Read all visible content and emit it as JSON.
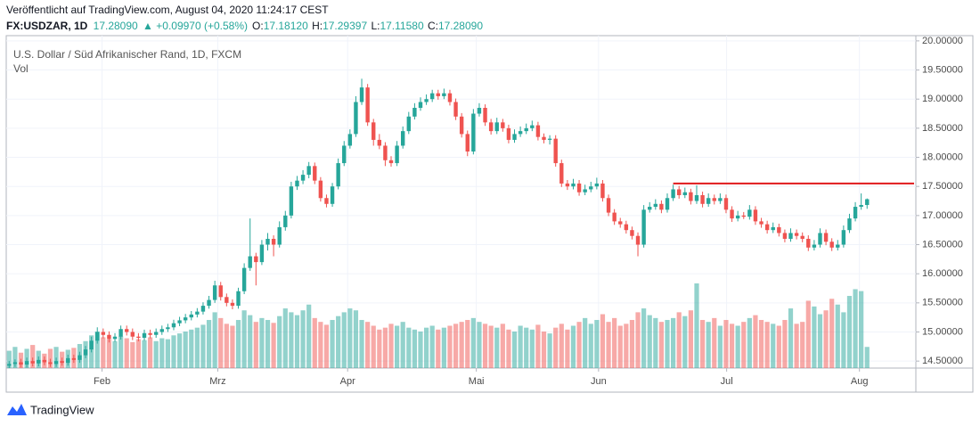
{
  "published": "Veröffentlicht auf TradingView.com, August 04, 2020 11:24:17 CEST",
  "legend": {
    "symbol": "FX:USDZAR, 1D",
    "last": "17.28090",
    "change": "▲ +0.09970 (+0.58%)",
    "ohlc": [
      {
        "label": "O:",
        "value": "17.18120"
      },
      {
        "label": "H:",
        "value": "17.29397"
      },
      {
        "label": "L:",
        "value": "17.11580"
      },
      {
        "label": "C:",
        "value": "17.28090"
      }
    ]
  },
  "brand": "TradingView",
  "chart_data": {
    "type": "candlestick",
    "title": "U.S. Dollar / Süd Afrikanischer Rand, 1D, FXCM",
    "volume_label": "Vol",
    "up_color": "#26a69a",
    "down_color": "#ef5350",
    "ylim": [
      14.38,
      20.09
    ],
    "yticks": [
      {
        "value": 14.5,
        "label": "14.50000"
      },
      {
        "value": 15,
        "label": "15.00000"
      },
      {
        "value": 15.5,
        "label": "15.50000"
      },
      {
        "value": 16,
        "label": "16.00000"
      },
      {
        "value": 16.5,
        "label": "16.50000"
      },
      {
        "value": 17,
        "label": "17.00000"
      },
      {
        "value": 17.5,
        "label": "17.50000"
      },
      {
        "value": 18,
        "label": "18.00000"
      },
      {
        "value": 18.5,
        "label": "18.50000"
      },
      {
        "value": 19,
        "label": "19.00000"
      },
      {
        "value": 19.5,
        "label": "19.50000"
      },
      {
        "value": 20,
        "label": "20.00000"
      }
    ],
    "xlim": [
      -0.5,
      154.3
    ],
    "xticks": [
      {
        "value": 15.8,
        "label": "Feb"
      },
      {
        "value": 35.5,
        "label": "Mrz"
      },
      {
        "value": 57.6,
        "label": "Apr"
      },
      {
        "value": 79.5,
        "label": "Mai"
      },
      {
        "value": 100.3,
        "label": "Jun"
      },
      {
        "value": 122.1,
        "label": "Jul"
      },
      {
        "value": 144.7,
        "label": "Aug"
      }
    ],
    "grid": true,
    "hline": {
      "value": 17.55,
      "from": 113,
      "color": "#e0191b"
    },
    "ohlc": [
      [
        14.42,
        14.5,
        14.38,
        14.45
      ],
      [
        14.45,
        14.53,
        14.4,
        14.48
      ],
      [
        14.48,
        14.54,
        14.39,
        14.44
      ],
      [
        14.44,
        14.56,
        14.39,
        14.5
      ],
      [
        14.5,
        14.56,
        14.41,
        14.46
      ],
      [
        14.46,
        14.58,
        14.41,
        14.52
      ],
      [
        14.52,
        14.58,
        14.43,
        14.48
      ],
      [
        14.48,
        14.54,
        14.4,
        14.45
      ],
      [
        14.45,
        14.56,
        14.4,
        14.5
      ],
      [
        14.5,
        14.56,
        14.42,
        14.47
      ],
      [
        14.47,
        14.61,
        14.42,
        14.55
      ],
      [
        14.55,
        14.61,
        14.47,
        14.52
      ],
      [
        14.52,
        14.66,
        14.47,
        14.6
      ],
      [
        14.6,
        14.76,
        14.55,
        14.7
      ],
      [
        14.7,
        14.92,
        14.65,
        14.85
      ],
      [
        14.85,
        15.08,
        14.8,
        15.0
      ],
      [
        15.0,
        15.06,
        14.89,
        14.95
      ],
      [
        14.95,
        15.01,
        14.82,
        14.88
      ],
      [
        14.88,
        14.98,
        14.83,
        14.92
      ],
      [
        14.92,
        15.11,
        14.87,
        15.05
      ],
      [
        15.05,
        15.11,
        14.94,
        15.0
      ],
      [
        15.0,
        15.06,
        14.86,
        14.92
      ],
      [
        14.92,
        14.98,
        14.84,
        14.9
      ],
      [
        14.9,
        15.04,
        14.85,
        14.98
      ],
      [
        14.98,
        15.04,
        14.89,
        14.95
      ],
      [
        14.95,
        15.06,
        14.9,
        15.0
      ],
      [
        15.0,
        15.11,
        14.95,
        15.05
      ],
      [
        15.05,
        15.14,
        15.0,
        15.08
      ],
      [
        15.08,
        15.21,
        15.03,
        15.15
      ],
      [
        15.15,
        15.26,
        15.1,
        15.2
      ],
      [
        15.2,
        15.31,
        15.15,
        15.25
      ],
      [
        15.25,
        15.36,
        15.2,
        15.3
      ],
      [
        15.3,
        15.41,
        15.25,
        15.35
      ],
      [
        15.35,
        15.51,
        15.3,
        15.45
      ],
      [
        15.45,
        15.62,
        15.4,
        15.55
      ],
      [
        15.55,
        15.88,
        15.5,
        15.8
      ],
      [
        15.8,
        15.86,
        15.54,
        15.6
      ],
      [
        15.6,
        15.66,
        15.44,
        15.5
      ],
      [
        15.5,
        15.56,
        15.39,
        15.45
      ],
      [
        15.45,
        15.76,
        15.4,
        15.7
      ],
      [
        15.7,
        16.18,
        15.65,
        16.1
      ],
      [
        16.1,
        16.95,
        16.05,
        16.3
      ],
      [
        16.3,
        16.36,
        15.8,
        16.2
      ],
      [
        16.2,
        16.58,
        16.15,
        16.5
      ],
      [
        16.5,
        16.7,
        16.4,
        16.6
      ],
      [
        16.6,
        16.66,
        16.3,
        16.5
      ],
      [
        16.5,
        16.9,
        16.45,
        16.8
      ],
      [
        16.8,
        17.08,
        16.74,
        17.0
      ],
      [
        17.0,
        17.58,
        16.95,
        17.5
      ],
      [
        17.5,
        17.68,
        17.44,
        17.6
      ],
      [
        17.6,
        17.78,
        17.54,
        17.7
      ],
      [
        17.7,
        17.92,
        17.64,
        17.85
      ],
      [
        17.85,
        17.91,
        17.54,
        17.6
      ],
      [
        17.6,
        17.66,
        17.24,
        17.3
      ],
      [
        17.3,
        17.36,
        17.14,
        17.2
      ],
      [
        17.2,
        17.56,
        17.15,
        17.5
      ],
      [
        17.5,
        17.98,
        17.45,
        17.9
      ],
      [
        17.9,
        18.28,
        17.85,
        18.2
      ],
      [
        18.2,
        18.48,
        18.15,
        18.4
      ],
      [
        18.4,
        19.05,
        18.35,
        18.95
      ],
      [
        18.95,
        19.35,
        18.9,
        19.2
      ],
      [
        19.2,
        19.26,
        18.54,
        18.6
      ],
      [
        18.6,
        18.66,
        18.2,
        18.3
      ],
      [
        18.3,
        18.4,
        18.14,
        18.2
      ],
      [
        18.2,
        18.26,
        17.85,
        17.95
      ],
      [
        17.95,
        18.02,
        17.84,
        17.9
      ],
      [
        17.9,
        18.28,
        17.85,
        18.2
      ],
      [
        18.2,
        18.53,
        18.15,
        18.45
      ],
      [
        18.45,
        18.78,
        18.4,
        18.7
      ],
      [
        18.7,
        18.93,
        18.65,
        18.85
      ],
      [
        18.85,
        19.03,
        18.8,
        18.95
      ],
      [
        18.95,
        19.08,
        18.9,
        19.0
      ],
      [
        19.0,
        19.16,
        18.95,
        19.1
      ],
      [
        19.1,
        19.16,
        18.99,
        19.05
      ],
      [
        19.05,
        19.18,
        19.0,
        19.1
      ],
      [
        19.1,
        19.16,
        18.89,
        18.95
      ],
      [
        18.95,
        19.01,
        18.64,
        18.7
      ],
      [
        18.7,
        18.76,
        18.34,
        18.4
      ],
      [
        18.4,
        18.46,
        18.02,
        18.1
      ],
      [
        18.1,
        18.83,
        18.05,
        18.75
      ],
      [
        18.75,
        18.93,
        18.7,
        18.85
      ],
      [
        18.85,
        18.91,
        18.54,
        18.6
      ],
      [
        18.6,
        18.66,
        18.39,
        18.45
      ],
      [
        18.45,
        18.68,
        18.4,
        18.6
      ],
      [
        18.6,
        18.66,
        18.44,
        18.5
      ],
      [
        18.5,
        18.56,
        18.24,
        18.3
      ],
      [
        18.3,
        18.48,
        18.25,
        18.4
      ],
      [
        18.4,
        18.53,
        18.35,
        18.45
      ],
      [
        18.45,
        18.58,
        18.4,
        18.5
      ],
      [
        18.5,
        18.63,
        18.45,
        18.55
      ],
      [
        18.55,
        18.61,
        18.29,
        18.35
      ],
      [
        18.35,
        18.41,
        18.24,
        18.3
      ],
      [
        18.3,
        18.38,
        18.22,
        18.32
      ],
      [
        18.32,
        18.38,
        17.84,
        17.9
      ],
      [
        17.9,
        17.96,
        17.49,
        17.55
      ],
      [
        17.55,
        17.61,
        17.44,
        17.5
      ],
      [
        17.5,
        17.63,
        17.45,
        17.55
      ],
      [
        17.55,
        17.61,
        17.34,
        17.4
      ],
      [
        17.4,
        17.53,
        17.35,
        17.45
      ],
      [
        17.45,
        17.58,
        17.4,
        17.5
      ],
      [
        17.5,
        17.65,
        17.45,
        17.55
      ],
      [
        17.55,
        17.61,
        17.24,
        17.3
      ],
      [
        17.3,
        17.36,
        16.99,
        17.05
      ],
      [
        17.05,
        17.11,
        16.84,
        16.9
      ],
      [
        16.9,
        16.96,
        16.79,
        16.85
      ],
      [
        16.85,
        16.91,
        16.69,
        16.75
      ],
      [
        16.75,
        16.81,
        16.59,
        16.65
      ],
      [
        16.65,
        16.71,
        16.3,
        16.5
      ],
      [
        16.5,
        17.18,
        16.45,
        17.1
      ],
      [
        17.1,
        17.23,
        17.05,
        17.15
      ],
      [
        17.15,
        17.28,
        17.1,
        17.2
      ],
      [
        17.2,
        17.26,
        17.04,
        17.1
      ],
      [
        17.1,
        17.38,
        17.05,
        17.3
      ],
      [
        17.3,
        17.53,
        17.25,
        17.45
      ],
      [
        17.45,
        17.51,
        17.29,
        17.35
      ],
      [
        17.35,
        17.48,
        17.3,
        17.4
      ],
      [
        17.4,
        17.46,
        17.19,
        17.25
      ],
      [
        17.25,
        17.52,
        17.2,
        17.35
      ],
      [
        17.35,
        17.41,
        17.14,
        17.2
      ],
      [
        17.2,
        17.38,
        17.15,
        17.3
      ],
      [
        17.3,
        17.36,
        17.19,
        17.25
      ],
      [
        17.25,
        17.38,
        17.2,
        17.3
      ],
      [
        17.3,
        17.36,
        17.04,
        17.1
      ],
      [
        17.1,
        17.16,
        16.89,
        16.95
      ],
      [
        16.95,
        17.08,
        16.9,
        17.0
      ],
      [
        17.0,
        17.06,
        16.94,
        16.98
      ],
      [
        16.98,
        17.18,
        16.93,
        17.1
      ],
      [
        17.1,
        17.16,
        16.84,
        16.9
      ],
      [
        16.9,
        16.96,
        16.79,
        16.85
      ],
      [
        16.85,
        16.91,
        16.69,
        16.75
      ],
      [
        16.75,
        16.88,
        16.7,
        16.8
      ],
      [
        16.8,
        16.86,
        16.64,
        16.7
      ],
      [
        16.7,
        16.76,
        16.54,
        16.6
      ],
      [
        16.6,
        16.78,
        16.55,
        16.7
      ],
      [
        16.7,
        16.76,
        16.59,
        16.65
      ],
      [
        16.65,
        16.71,
        16.54,
        16.6
      ],
      [
        16.6,
        16.66,
        16.39,
        16.45
      ],
      [
        16.45,
        16.58,
        16.4,
        16.5
      ],
      [
        16.5,
        16.78,
        16.45,
        16.7
      ],
      [
        16.7,
        16.76,
        16.49,
        16.55
      ],
      [
        16.55,
        16.61,
        16.39,
        16.45
      ],
      [
        16.45,
        16.58,
        16.4,
        16.5
      ],
      [
        16.5,
        16.83,
        16.45,
        16.75
      ],
      [
        16.75,
        17.03,
        16.7,
        16.95
      ],
      [
        16.95,
        17.23,
        16.9,
        17.15
      ],
      [
        17.15,
        17.38,
        17.1,
        17.1812
      ],
      [
        17.1812,
        17.29397,
        17.1158,
        17.2809
      ]
    ],
    "volume": [
      18,
      22,
      16,
      20,
      24,
      18,
      15,
      20,
      22,
      17,
      19,
      21,
      25,
      28,
      34,
      38,
      32,
      30,
      28,
      33,
      31,
      27,
      30,
      29,
      32,
      28,
      31,
      30,
      34,
      36,
      38,
      40,
      42,
      45,
      50,
      58,
      52,
      46,
      44,
      50,
      60,
      55,
      48,
      52,
      50,
      47,
      54,
      62,
      58,
      55,
      60,
      66,
      52,
      48,
      45,
      50,
      54,
      58,
      62,
      60,
      50,
      48,
      44,
      40,
      42,
      46,
      44,
      48,
      42,
      40,
      38,
      42,
      44,
      40,
      42,
      44,
      46,
      48,
      50,
      52,
      48,
      46,
      44,
      42,
      46,
      40,
      38,
      44,
      42,
      40,
      45,
      38,
      36,
      42,
      46,
      40,
      44,
      48,
      52,
      46,
      50,
      56,
      48,
      52,
      44,
      46,
      50,
      58,
      62,
      55,
      52,
      48,
      50,
      52,
      58,
      54,
      60,
      88,
      50,
      48,
      52,
      44,
      50,
      46,
      44,
      48,
      52,
      55,
      50,
      48,
      46,
      44,
      50,
      62,
      46,
      48,
      70,
      64,
      56,
      60,
      72,
      66,
      58,
      75,
      82,
      80,
      22
    ]
  }
}
